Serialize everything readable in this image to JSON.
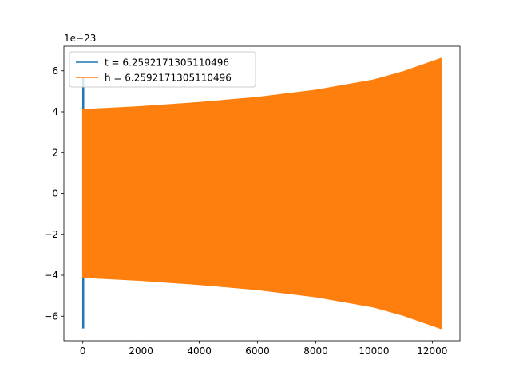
{
  "chart_data": {
    "type": "line",
    "title": "",
    "xlabel": "",
    "ylabel": "",
    "y_offset_label": "1e−23",
    "xlim": [
      -650,
      12950
    ],
    "ylim": [
      -7.2,
      7.2
    ],
    "x_ticks": [
      0,
      2000,
      4000,
      6000,
      8000,
      10000,
      12000
    ],
    "x_tick_labels": [
      "0",
      "2000",
      "4000",
      "6000",
      "8000",
      "10000",
      "12000"
    ],
    "y_ticks": [
      -6,
      -4,
      -2,
      0,
      2,
      4,
      6
    ],
    "y_tick_labels": [
      "−6",
      "−4",
      "−2",
      "0",
      "2",
      "4",
      "6"
    ],
    "grid": false,
    "legend_position": "upper-left",
    "series": [
      {
        "name": "t = 6.2592171305110496",
        "color": "#1f77b4",
        "x": [
          0,
          0,
          0,
          0,
          0,
          0
        ],
        "y": [
          5.7,
          -6.6,
          5.4,
          -4.1,
          4.1,
          1.0
        ],
        "segments": 60
      },
      {
        "name": "h = 6.2592171305110496",
        "color": "#ff7f0e",
        "x": [
          0,
          2000,
          4000,
          6000,
          8000,
          10000,
          11000,
          12000,
          12300
        ],
        "envelope_upper": [
          4.1,
          4.25,
          4.45,
          4.7,
          5.05,
          5.55,
          5.95,
          6.45,
          6.6
        ],
        "envelope_lower": [
          -4.1,
          -4.25,
          -4.45,
          -4.7,
          -5.05,
          -5.55,
          -5.95,
          -6.45,
          -6.6
        ]
      }
    ]
  }
}
